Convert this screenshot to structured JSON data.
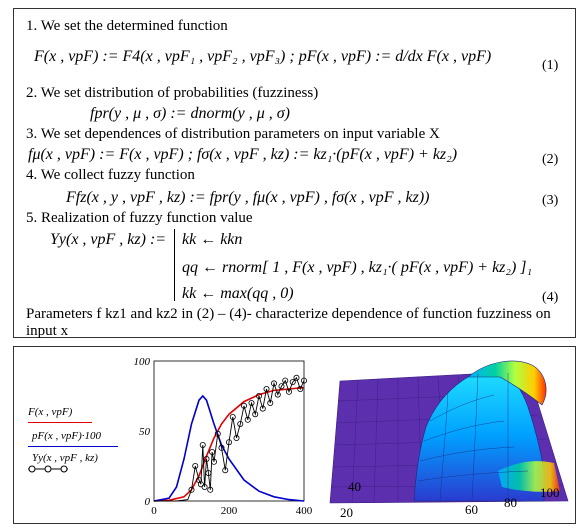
{
  "steps": {
    "s1_title": "1. We set the determined function",
    "s1_eq": "F(x , vpF) := F4(x , vpF₁ , vpF₂ , vpF₃) ;  pF(x , vpF) := d/dx F(x , vpF)",
    "s1_num": "(1)",
    "s2_title": "2. We set distribution of probabilities (fuzziness)",
    "s2_eq": "fpr(y , μ , σ) := dnorm(y , μ , σ)",
    "s3_title": "3. We set dependences of distribution parameters on input variable X",
    "s3_eq": "fμ(x , vpF) := F(x , vpF) ;   fσ(x , vpF , kz) := kz₁·(pF(x , vpF) + kz₂)",
    "s3_num": "(2)",
    "s4_title": "4. We collect  fuzzy  function",
    "s4_eq": "Ffz(x , y , vpF , kz) := fpr(y , fμ(x , vpF) , fσ(x , vpF , kz))",
    "s4_num": "(3)",
    "s5_title": "5. Realization of fuzzy function value",
    "s5_lhs": "Yy(x , vpF , kz) :=",
    "s5_l1": "kk ← kkn",
    "s5_l2": "qq ← rnorm[ 1 , F(x , vpF) , kz₁·( pF(x , vpF) + kz₂) ]₁",
    "s5_l3": "kk ← max(qq , 0)",
    "s5_num": "(4)",
    "note": "Parameters f kz1 and kz2 in (2) – (4)- characterize dependence of function fuzziness on input x"
  },
  "legend": {
    "l1": "F(x , vpF)",
    "l2": "pF(x , vpF)·100",
    "l3": "Yy(x , vpF , kz)"
  },
  "colors": {
    "F": "#e00000",
    "pF": "#0000cc",
    "Yy": "#000000"
  },
  "chart_data": [
    {
      "type": "line",
      "xlim": [
        0,
        400
      ],
      "ylim": [
        0,
        100
      ],
      "x_ticks": [
        "0",
        "200",
        "400"
      ],
      "y_ticks": [
        "0",
        "50",
        "100"
      ],
      "series": [
        {
          "name": "F(x , vpF)",
          "color": "#e00000",
          "x": [
            0,
            40,
            80,
            100,
            120,
            140,
            160,
            180,
            200,
            240,
            280,
            320,
            360,
            400
          ],
          "y": [
            0,
            0.5,
            3,
            8,
            18,
            32,
            45,
            55,
            62,
            71,
            76,
            79,
            80,
            81
          ]
        },
        {
          "name": "pF(x , vpF)·100",
          "color": "#0000cc",
          "x": [
            0,
            40,
            60,
            80,
            100,
            120,
            130,
            140,
            160,
            180,
            200,
            240,
            280,
            320,
            360,
            400
          ],
          "y": [
            0,
            2,
            10,
            30,
            55,
            72,
            75,
            72,
            55,
            40,
            30,
            15,
            7,
            3,
            1,
            0
          ]
        },
        {
          "name": "Yy(x , vpF , kz)",
          "color": "#000000",
          "x": [
            0,
            30,
            60,
            90,
            100,
            110,
            120,
            125,
            130,
            135,
            140,
            145,
            150,
            155,
            160,
            170,
            180,
            190,
            200,
            210,
            220,
            230,
            240,
            250,
            260,
            270,
            280,
            290,
            300,
            310,
            320,
            330,
            340,
            350,
            360,
            370,
            380,
            390,
            400
          ],
          "y": [
            0,
            0,
            0,
            1,
            8,
            25,
            15,
            12,
            40,
            10,
            30,
            20,
            8,
            35,
            28,
            48,
            38,
            22,
            42,
            60,
            45,
            55,
            68,
            58,
            70,
            62,
            75,
            66,
            80,
            70,
            84,
            76,
            82,
            86,
            78,
            85,
            88,
            80,
            86
          ]
        }
      ]
    },
    {
      "type": "surface",
      "x_ticks": [
        "60",
        "80",
        "100"
      ],
      "y_ticks": [
        "20",
        "40"
      ]
    }
  ]
}
